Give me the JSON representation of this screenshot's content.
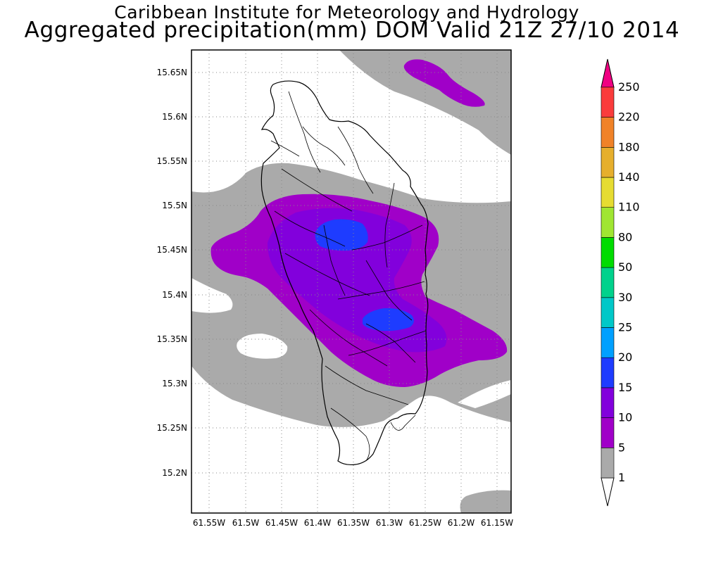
{
  "title": {
    "line1": "Caribbean Institute for Meteorology and Hydrology",
    "line2": "Aggregated precipitation(mm) DOM Valid 21Z 27/10 2014"
  },
  "map": {
    "lat_labels": [
      "15.65N",
      "15.6N",
      "15.55N",
      "15.5N",
      "15.45N",
      "15.4N",
      "15.35N",
      "15.3N",
      "15.25N",
      "15.2N"
    ],
    "lon_labels": [
      "61.55W",
      "61.5W",
      "61.45W",
      "61.4W",
      "61.35W",
      "61.3W",
      "61.25W",
      "61.2W",
      "61.15W"
    ]
  },
  "colorbar": {
    "levels": [
      "1",
      "5",
      "10",
      "15",
      "20",
      "25",
      "30",
      "50",
      "80",
      "110",
      "140",
      "180",
      "220",
      "250"
    ],
    "colors": [
      "#aaaaaa",
      "#a000c8",
      "#8200dc",
      "#1e3cff",
      "#00a0ff",
      "#00c8c8",
      "#00d28c",
      "#00dc00",
      "#a0e632",
      "#e6dc32",
      "#e6af2d",
      "#f08228",
      "#fa3c3c",
      "#f00082"
    ]
  }
}
